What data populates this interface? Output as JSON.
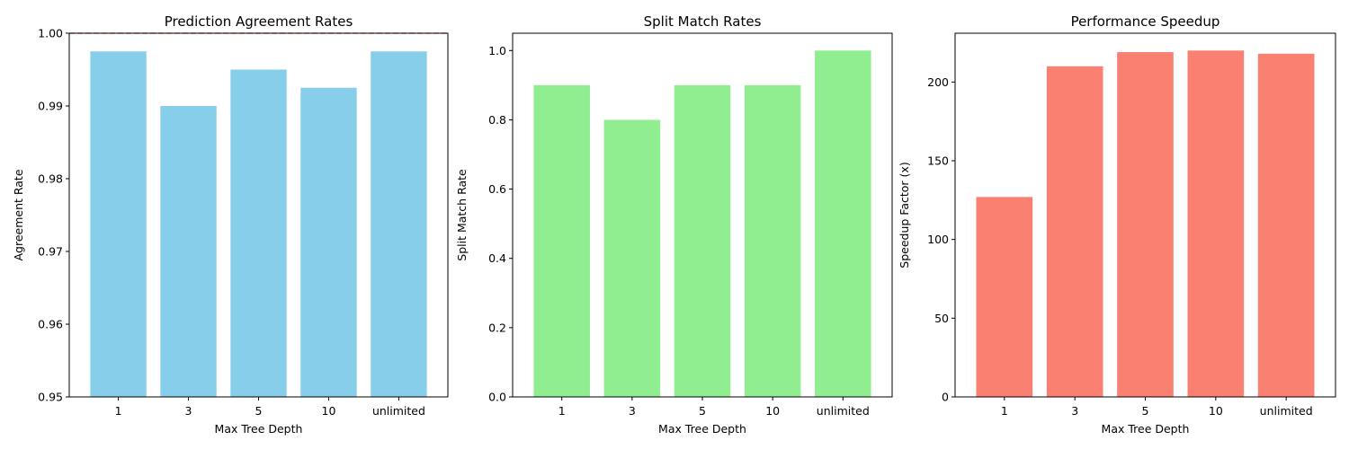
{
  "chart_data": [
    {
      "type": "bar",
      "title": "Prediction Agreement Rates",
      "xlabel": "Max Tree Depth",
      "ylabel": "Agreement Rate",
      "categories": [
        "1",
        "3",
        "5",
        "10",
        "unlimited"
      ],
      "values": [
        0.9975,
        0.99,
        0.995,
        0.9925,
        0.9975
      ],
      "ylim": [
        0.95,
        1.0
      ],
      "yticks": [
        0.95,
        0.96,
        0.97,
        0.98,
        0.99,
        1.0
      ],
      "ytick_labels": [
        "0.95",
        "0.96",
        "0.97",
        "0.98",
        "0.99",
        "1.00"
      ],
      "bar_color": "#87CEEB",
      "reference_line": {
        "y": 1.0,
        "style": "dashed",
        "color": "#FF7F7F"
      },
      "grid": false
    },
    {
      "type": "bar",
      "title": "Split Match Rates",
      "xlabel": "Max Tree Depth",
      "ylabel": "Split Match Rate",
      "categories": [
        "1",
        "3",
        "5",
        "10",
        "unlimited"
      ],
      "values": [
        0.9,
        0.8,
        0.9,
        0.9,
        1.0
      ],
      "ylim": [
        0.0,
        1.05
      ],
      "yticks": [
        0.0,
        0.2,
        0.4,
        0.6,
        0.8,
        1.0
      ],
      "ytick_labels": [
        "0.0",
        "0.2",
        "0.4",
        "0.6",
        "0.8",
        "1.0"
      ],
      "bar_color": "#90EE90",
      "grid": false
    },
    {
      "type": "bar",
      "title": "Performance Speedup",
      "xlabel": "Max Tree Depth",
      "ylabel": "Speedup Factor (x)",
      "categories": [
        "1",
        "3",
        "5",
        "10",
        "unlimited"
      ],
      "values": [
        127,
        210,
        219,
        220,
        218
      ],
      "ylim": [
        0,
        231
      ],
      "yticks": [
        0,
        50,
        100,
        150,
        200
      ],
      "ytick_labels": [
        "0",
        "50",
        "100",
        "150",
        "200"
      ],
      "bar_color": "#FA8072",
      "grid": false
    }
  ]
}
